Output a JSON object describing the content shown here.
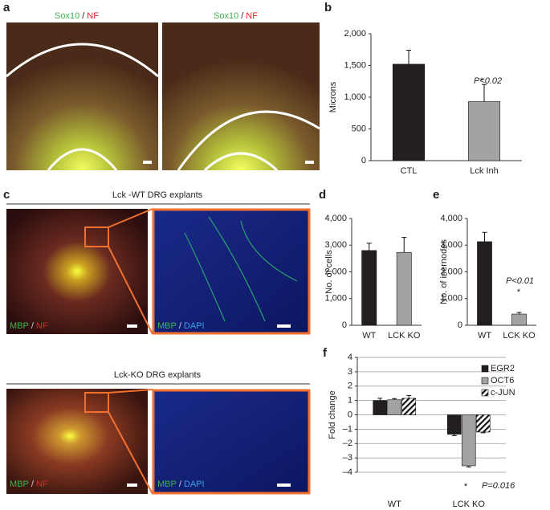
{
  "panel_a": {
    "label": "a",
    "captions": [
      {
        "green": "Sox10",
        "sep": "/",
        "red": "NF"
      },
      {
        "green": "Sox10",
        "sep": "/",
        "red": "NF"
      }
    ]
  },
  "panel_c": {
    "label": "c",
    "groups": [
      {
        "title": "Lck -WT DRG explants",
        "left": {
          "green": "MBP",
          "sep": "/",
          "red": "NF"
        },
        "right": {
          "green": "MBP",
          "sep": "/",
          "blue": "DAPI"
        }
      },
      {
        "title": "Lck-KO DRG explants",
        "left": {
          "green": "MBP",
          "sep": "/",
          "red": "NF"
        },
        "right": {
          "green": "MBP",
          "sep": "/",
          "blue": "DAPI"
        }
      }
    ]
  },
  "chart_data": [
    {
      "type": "bar",
      "label": "b",
      "y_label": "Microns",
      "categories": [
        "CTL",
        "Lck Inh"
      ],
      "values": [
        1520,
        930
      ],
      "errors": [
        220,
        270
      ],
      "colors": [
        "#231f20",
        "#a3a3a3"
      ],
      "ylim": [
        0,
        2000
      ],
      "yticks": [
        0,
        500,
        {
          "value": 1000,
          "label": "1,000"
        },
        {
          "value": 1500,
          "label": "1,500"
        },
        {
          "value": 2000,
          "label": "2,000"
        }
      ],
      "annotation": {
        "star": "*",
        "text": "P<0.02"
      }
    },
    {
      "type": "bar",
      "label": "d",
      "y_label": "No. of cells",
      "categories": [
        "WT",
        "LCK KO"
      ],
      "values": [
        2800,
        2730
      ],
      "errors": [
        270,
        560
      ],
      "colors": [
        "#231f20",
        "#a3a3a3"
      ],
      "ylim": [
        0,
        4000
      ],
      "yticks": [
        0,
        {
          "value": 1000,
          "label": "1,000"
        },
        {
          "value": 2000,
          "label": "2,000"
        },
        {
          "value": 3000,
          "label": "3,000"
        },
        {
          "value": 4000,
          "label": "4,000"
        }
      ]
    },
    {
      "type": "bar",
      "label": "e",
      "y_label": "No. of inernodes",
      "categories": [
        "WT",
        "LCK KO"
      ],
      "values": [
        3130,
        420
      ],
      "errors": [
        350,
        60
      ],
      "colors": [
        "#231f20",
        "#a3a3a3"
      ],
      "ylim": [
        0,
        4000
      ],
      "yticks": [
        0,
        {
          "value": 1000,
          "label": "1,000"
        },
        {
          "value": 2000,
          "label": "2,000"
        },
        {
          "value": 3000,
          "label": "3,000"
        },
        {
          "value": 4000,
          "label": "4,000"
        }
      ],
      "annotation": {
        "star": "*",
        "text": "P<0.01"
      }
    },
    {
      "type": "bar",
      "label": "f",
      "y_label": "Fold change",
      "categories": [
        "WT",
        "LCK KO"
      ],
      "series": [
        {
          "name": "EGR2",
          "color": "#231f20",
          "values": [
            1.0,
            -1.35
          ],
          "errors": [
            0.15,
            0.1
          ]
        },
        {
          "name": "OCT6",
          "color": "#a3a3a3",
          "values": [
            1.05,
            -3.55
          ],
          "errors": [
            0.08,
            0.08
          ]
        },
        {
          "name": "c-JUN",
          "color": "#ffffff",
          "hatch": true,
          "values": [
            1.15,
            -1.2
          ],
          "errors": [
            0.2,
            0.05
          ]
        }
      ],
      "ylim": [
        -4,
        4
      ],
      "yticks": [
        {
          "value": -4,
          "label": "–4"
        },
        {
          "value": -3,
          "label": "–3"
        },
        {
          "value": -2,
          "label": "–2"
        },
        {
          "value": -1,
          "label": "–1"
        },
        0,
        1,
        2,
        3,
        4
      ],
      "grid": true,
      "legend": "top-right",
      "annotation": {
        "star": "*",
        "text": "P=0.016"
      }
    }
  ]
}
